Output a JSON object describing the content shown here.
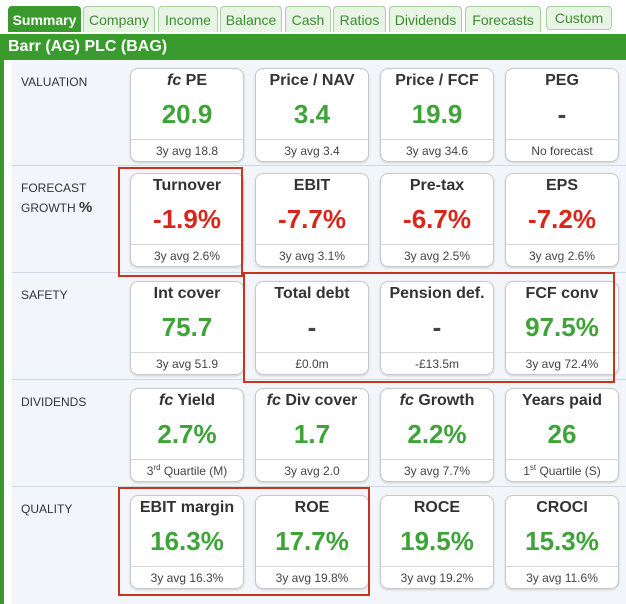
{
  "tabs": [
    {
      "label": "Summary"
    },
    {
      "label": "Company"
    },
    {
      "label": "Income"
    },
    {
      "label": "Balance"
    },
    {
      "label": "Cash"
    },
    {
      "label": "Ratios"
    },
    {
      "label": "Dividends"
    },
    {
      "label": "Forecasts"
    },
    {
      "label": "Custom"
    }
  ],
  "company_title": "Barr (AG) PLC (BAG)",
  "sections": {
    "valuation": {
      "label": "VALUATION",
      "cards": [
        {
          "prefix": "fc",
          "title": "PE",
          "value": "20.9",
          "footer": "3y avg 18.8"
        },
        {
          "title": "Price / NAV",
          "value": "3.4",
          "footer": "3y avg 3.4"
        },
        {
          "title": "Price / FCF",
          "value": "19.9",
          "footer": "3y avg 34.6"
        },
        {
          "title": "PEG",
          "value": "-",
          "footer": "No forecast"
        }
      ]
    },
    "forecast_growth": {
      "label_line1": "FORECAST",
      "label_line2": "GROWTH",
      "label_pct": "%",
      "cards": [
        {
          "title": "Turnover",
          "value": "-1.9%",
          "footer": "3y avg 2.6%"
        },
        {
          "title": "EBIT",
          "value": "-7.7%",
          "footer": "3y avg 3.1%"
        },
        {
          "title": "Pre-tax",
          "value": "-6.7%",
          "footer": "3y avg 2.5%"
        },
        {
          "title": "EPS",
          "value": "-7.2%",
          "footer": "3y avg 2.6%"
        }
      ]
    },
    "safety": {
      "label": "SAFETY",
      "cards": [
        {
          "title": "Int cover",
          "value": "75.7",
          "footer": "3y avg 51.9"
        },
        {
          "title": "Total debt",
          "value": "-",
          "footer": "£0.0m"
        },
        {
          "title": "Pension def.",
          "value": "-",
          "footer": "-£13.5m"
        },
        {
          "title": "FCF conv",
          "value": "97.5%",
          "footer": "3y avg 72.4%"
        }
      ]
    },
    "dividends": {
      "label": "DIVIDENDS",
      "cards": [
        {
          "prefix": "fc",
          "title": "Yield",
          "value": "2.7%",
          "footer_pre": "3",
          "footer_sup": "rd",
          "footer_post": " Quartile (M)"
        },
        {
          "prefix": "fc",
          "title": "Div cover",
          "value": "1.7",
          "footer": "3y avg 2.0"
        },
        {
          "prefix": "fc",
          "title": "Growth",
          "value": "2.2%",
          "footer": "3y avg 7.7%"
        },
        {
          "title": "Years paid",
          "value": "26",
          "footer_pre": "1",
          "footer_sup": "st",
          "footer_post": " Quartile (S)"
        }
      ]
    },
    "quality": {
      "label": "QUALITY",
      "cards": [
        {
          "title": "EBIT margin",
          "value": "16.3%",
          "footer": "3y avg 16.3%"
        },
        {
          "title": "ROE",
          "value": "17.7%",
          "footer": "3y avg 19.8%"
        },
        {
          "title": "ROCE",
          "value": "19.5%",
          "footer": "3y avg 19.2%"
        },
        {
          "title": "CROCI",
          "value": "15.3%",
          "footer": "3y avg 11.6%"
        }
      ]
    }
  },
  "colors": {
    "brand_green": "#3a9a2e",
    "positive": "#3fa33a",
    "negative": "#d8261b",
    "highlight_box": "#c8341e"
  }
}
